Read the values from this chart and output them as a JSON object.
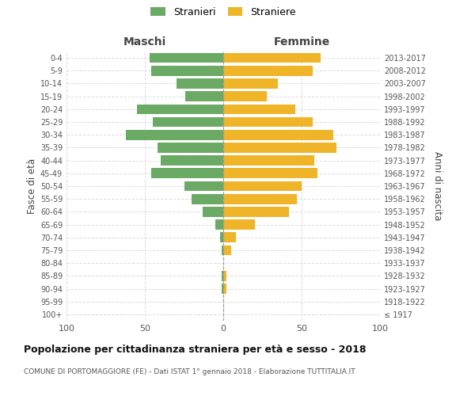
{
  "age_groups": [
    "100+",
    "95-99",
    "90-94",
    "85-89",
    "80-84",
    "75-79",
    "70-74",
    "65-69",
    "60-64",
    "55-59",
    "50-54",
    "45-49",
    "40-44",
    "35-39",
    "30-34",
    "25-29",
    "20-24",
    "15-19",
    "10-14",
    "5-9",
    "0-4"
  ],
  "birth_years": [
    "≤ 1917",
    "1918-1922",
    "1923-1927",
    "1928-1932",
    "1933-1937",
    "1938-1942",
    "1943-1947",
    "1948-1952",
    "1953-1957",
    "1958-1962",
    "1963-1967",
    "1968-1972",
    "1973-1977",
    "1978-1982",
    "1983-1987",
    "1988-1992",
    "1993-1997",
    "1998-2002",
    "2003-2007",
    "2008-2012",
    "2013-2017"
  ],
  "maschi": [
    0,
    0,
    1,
    1,
    0,
    1,
    2,
    5,
    13,
    20,
    25,
    46,
    40,
    42,
    62,
    45,
    55,
    24,
    30,
    46,
    47
  ],
  "femmine": [
    0,
    0,
    2,
    2,
    0,
    5,
    8,
    20,
    42,
    47,
    50,
    60,
    58,
    72,
    70,
    57,
    46,
    28,
    35,
    57,
    62
  ],
  "male_color": "#6aaa64",
  "female_color": "#f0b429",
  "xlim": 100,
  "title": "Popolazione per cittadinanza straniera per età e sesso - 2018",
  "subtitle": "COMUNE DI PORTOMAGGIORE (FE) - Dati ISTAT 1° gennaio 2018 - Elaborazione TUTTITALIA.IT",
  "ylabel_left": "Fasce di età",
  "ylabel_right": "Anni di nascita",
  "legend_male": "Stranieri",
  "legend_female": "Straniere",
  "header_left": "Maschi",
  "header_right": "Femmine",
  "bg_color": "#ffffff",
  "grid_color": "#dddddd",
  "text_color": "#555555",
  "axis_label_color": "#444444"
}
